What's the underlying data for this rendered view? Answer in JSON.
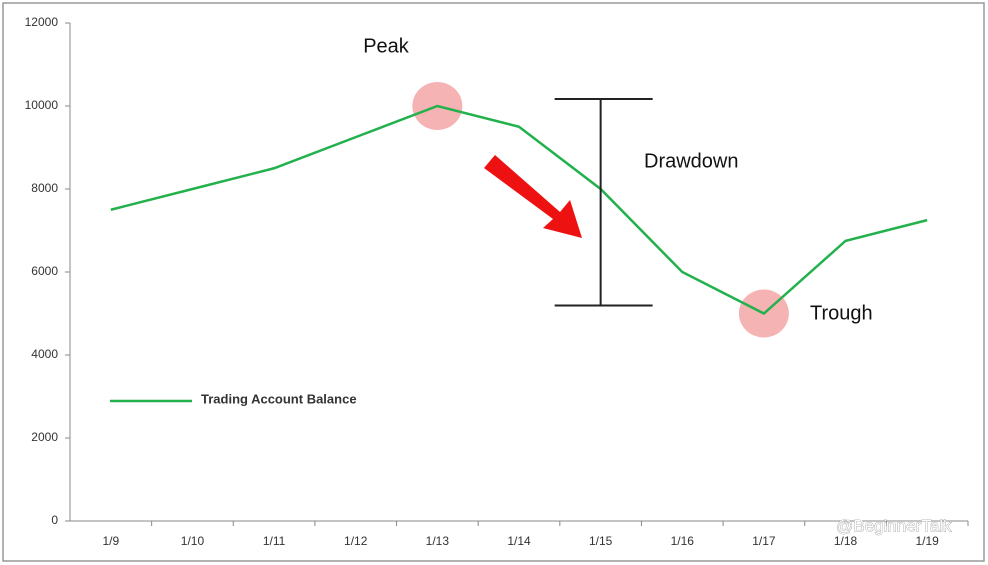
{
  "chart_data": {
    "type": "line",
    "categories": [
      "1/9",
      "1/10",
      "1/11",
      "1/12",
      "1/13",
      "1/14",
      "1/15",
      "1/16",
      "1/17",
      "1/18",
      "1/19"
    ],
    "series": [
      {
        "name": "Trading Account Balance",
        "color": "#22b14c",
        "values": [
          7500,
          8000,
          8500,
          9250,
          10000,
          9500,
          8000,
          6000,
          5000,
          6750,
          7250
        ]
      }
    ],
    "ylim": [
      0,
      12000
    ],
    "yticks": [
      0,
      2000,
      4000,
      6000,
      8000,
      10000,
      12000
    ],
    "grid": false,
    "legend": "left",
    "annotations": [
      "Peak",
      "Drawdown",
      "Trough"
    ],
    "watermark": "@BeginnerTalk"
  }
}
